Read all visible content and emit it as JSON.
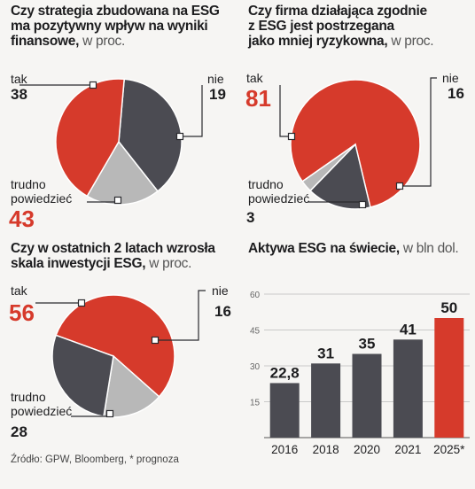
{
  "chart_data": [
    {
      "type": "pie",
      "title": "Czy strategia zbudowana na ESG ma pozytywny wpływ na wyniki finansowe,",
      "title_lines": [
        "Czy strategia zbudowana na ESG",
        "ma pozytywny wpływ na wyniki",
        "finansowe,"
      ],
      "unit": "w proc.",
      "slices": [
        {
          "label": "tak",
          "value": 38,
          "color": "#4b4b52"
        },
        {
          "label": "nie",
          "value": 19,
          "color": "#b8b8b8"
        },
        {
          "label": "trudno powiedzieć",
          "label_lines": [
            "trudno",
            "powiedzieć"
          ],
          "value": 43,
          "color": "#d63a2b"
        }
      ]
    },
    {
      "type": "pie",
      "title": "Czy firma działająca zgodnie z ESG jest postrzegana jako mniej ryzykowna,",
      "title_lines": [
        "Czy firma  działająca zgodnie",
        "z ESG jest postrzegana",
        "jako mniej ryzykowna,"
      ],
      "unit": "w proc.",
      "slices": [
        {
          "label": "tak",
          "value": 81,
          "color": "#d63a2b"
        },
        {
          "label": "nie",
          "value": 16,
          "color": "#4b4b52"
        },
        {
          "label": "trudno powiedzieć",
          "label_lines": [
            "trudno",
            "powiedzieć"
          ],
          "value": 3,
          "color": "#b8b8b8"
        }
      ]
    },
    {
      "type": "pie",
      "title": "Czy w ostatnich 2 latach wzrosła skala inwestycji ESG,",
      "title_lines": [
        "Czy w ostatnich 2 latach wzrosła",
        "skala inwestycji ESG,"
      ],
      "unit": "w  proc.",
      "slices": [
        {
          "label": "tak",
          "value": 56,
          "color": "#d63a2b"
        },
        {
          "label": "nie",
          "value": 16,
          "color": "#b8b8b8"
        },
        {
          "label": "trudno powiedzieć",
          "label_lines": [
            "trudno",
            "powiedzieć"
          ],
          "value": 28,
          "color": "#4b4b52"
        }
      ]
    },
    {
      "type": "bar",
      "title": "Aktywa ESG na świecie,",
      "title_lines": [
        "Aktywa ESG na świecie,"
      ],
      "unit": "w bln dol.",
      "categories": [
        "2016",
        "2018",
        "2020",
        "2021",
        "2025*"
      ],
      "values": [
        22.8,
        31,
        35,
        41,
        50
      ],
      "value_labels": [
        "22,8",
        "31",
        "35",
        "41",
        "50"
      ],
      "colors": [
        "#4b4b52",
        "#4b4b52",
        "#4b4b52",
        "#4b4b52",
        "#d63a2b"
      ],
      "yticks": [
        15,
        30,
        45,
        60
      ],
      "ylim": [
        0,
        60
      ],
      "grid": true
    }
  ],
  "source": "Źródło: GPW, Bloomberg, * prognoza"
}
